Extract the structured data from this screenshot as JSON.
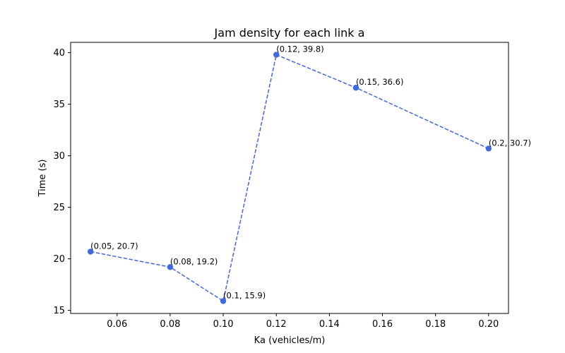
{
  "chart_data": {
    "type": "line",
    "title": "Jam density for each link a",
    "xlabel": "Ka (vehicles/m)",
    "ylabel": "Time (s)",
    "xlim": [
      0.0425,
      0.2075
    ],
    "ylim": [
      14.7,
      41.0
    ],
    "x_ticks": [
      0.06,
      0.08,
      0.1,
      0.12,
      0.14,
      0.16,
      0.18,
      0.2
    ],
    "x_tick_labels": [
      "0.06",
      "0.08",
      "0.10",
      "0.12",
      "0.14",
      "0.16",
      "0.18",
      "0.20"
    ],
    "y_ticks": [
      15,
      20,
      25,
      30,
      35,
      40
    ],
    "y_tick_labels": [
      "15",
      "20",
      "25",
      "30",
      "35",
      "40"
    ],
    "grid": false,
    "line_style": "dashed",
    "marker": "circle",
    "color": "#4169e1",
    "series": [
      {
        "x": [
          0.05,
          0.08,
          0.1,
          0.12,
          0.15,
          0.2
        ],
        "y": [
          20.7,
          19.2,
          15.9,
          39.8,
          36.6,
          30.7
        ],
        "point_labels": [
          "(0.05, 20.7)",
          "(0.08, 19.2)",
          "(0.1, 15.9)",
          "(0.12, 39.8)",
          "(0.15, 36.6)",
          "(0.2, 30.7)"
        ]
      }
    ]
  }
}
